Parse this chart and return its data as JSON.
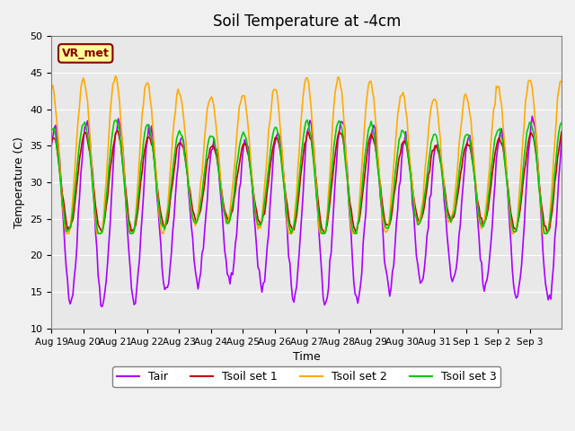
{
  "title": "Soil Temperature at -4cm",
  "xlabel": "Time",
  "ylabel": "Temperature (C)",
  "ylim": [
    10,
    50
  ],
  "background_color": "#e8e8e8",
  "fig_color": "#f0f0f0",
  "colors": {
    "Tair": "#aa00ff",
    "Tsoil set 1": "#cc0000",
    "Tsoil set 2": "#ffaa00",
    "Tsoil set 3": "#00cc00"
  },
  "xtick_labels": [
    "Aug 19",
    "Aug 20",
    "Aug 21",
    "Aug 22",
    "Aug 23",
    "Aug 24",
    "Aug 25",
    "Aug 26",
    "Aug 27",
    "Aug 28",
    "Aug 29",
    "Aug 30",
    "Aug 31",
    "Sep 1",
    "Sep 2",
    "Sep 3"
  ],
  "ytick_values": [
    10,
    15,
    20,
    25,
    30,
    35,
    40,
    45,
    50
  ],
  "ytick_labels": [
    "10",
    "15",
    "20",
    "25",
    "30",
    "35",
    "40",
    "45",
    "50"
  ],
  "annotation": "VR_met",
  "annotation_color": "#880000",
  "annotation_bg": "#ffff99",
  "n_days": 16,
  "seed": 42
}
